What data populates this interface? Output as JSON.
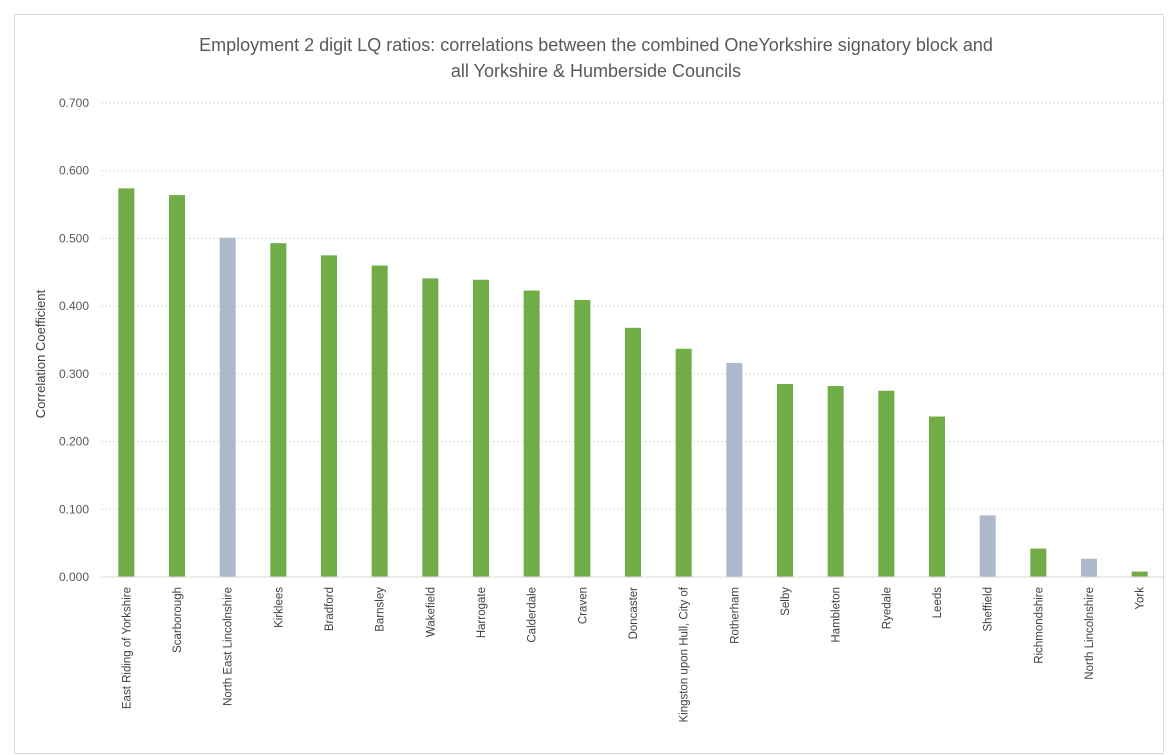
{
  "chart_data": {
    "type": "bar",
    "title_lines": [
      "Employment 2 digit LQ ratios: correlations between the combined OneYorkshire signatory block and",
      "all Yorkshire & Humberside Councils"
    ],
    "xlabel": "",
    "ylabel": "Correlation Coefficient",
    "ylim": [
      0,
      0.7
    ],
    "yticks": [
      "0.000",
      "0.100",
      "0.200",
      "0.300",
      "0.400",
      "0.500",
      "0.600",
      "0.700"
    ],
    "grid": true,
    "legend": "none",
    "colors": {
      "green": "#70ad47",
      "grey": "#adb9ca"
    },
    "categories": [
      "East Riding of Yorkshire",
      "Scarborough",
      "North East Lincolnshire",
      "Kirklees",
      "Bradford",
      "Barnsley",
      "Wakefield",
      "Harrogate",
      "Calderdale",
      "Craven",
      "Doncaster",
      "Kingston upon Hull, City of",
      "Rotherham",
      "Selby",
      "Hambleton",
      "Ryedale",
      "Leeds",
      "Sheffield",
      "Richmondshire",
      "North Lincolnshire",
      "York"
    ],
    "values": [
      0.574,
      0.564,
      0.501,
      0.493,
      0.475,
      0.46,
      0.441,
      0.439,
      0.423,
      0.409,
      0.368,
      0.337,
      0.316,
      0.285,
      0.282,
      0.275,
      0.237,
      0.091,
      0.042,
      0.027,
      0.008
    ],
    "bar_colors": [
      "green",
      "green",
      "grey",
      "green",
      "green",
      "green",
      "green",
      "green",
      "green",
      "green",
      "green",
      "green",
      "grey",
      "green",
      "green",
      "green",
      "green",
      "grey",
      "green",
      "grey",
      "green"
    ]
  }
}
